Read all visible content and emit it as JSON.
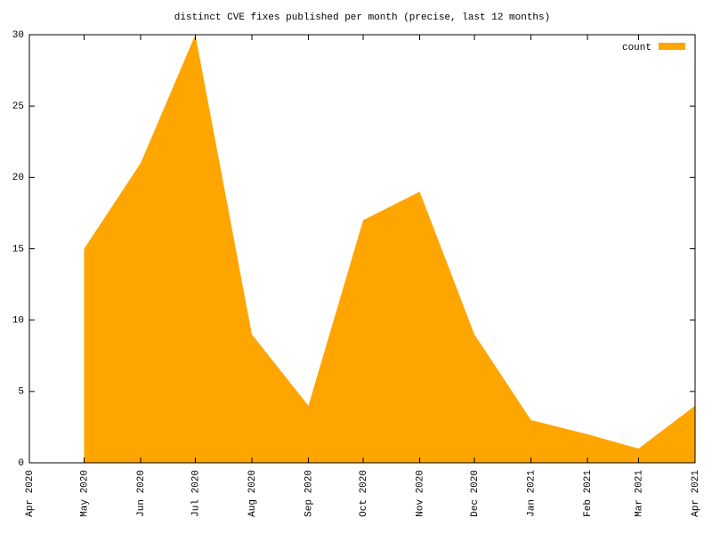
{
  "chart_data": {
    "type": "area",
    "title": "distinct CVE fixes published per month (precise, last 12 months)",
    "x": [
      "2020-05",
      "2020-06",
      "2020-07",
      "2020-08",
      "2020-09",
      "2020-10",
      "2020-11",
      "2020-12",
      "2021-01",
      "2021-02",
      "2021-03",
      "2021-04"
    ],
    "series": [
      {
        "name": "count",
        "color": "#ffa500",
        "values": [
          15,
          21,
          30,
          9,
          4,
          17,
          19,
          9,
          3,
          2,
          1,
          4
        ]
      }
    ],
    "xlim": [
      "2020-04",
      "2021-04"
    ],
    "xticks": [
      {
        "value": "2020-04",
        "label": "Apr 2020"
      },
      {
        "value": "2020-05",
        "label": "May 2020"
      },
      {
        "value": "2020-06",
        "label": "Jun 2020"
      },
      {
        "value": "2020-07",
        "label": "Jul 2020"
      },
      {
        "value": "2020-08",
        "label": "Aug 2020"
      },
      {
        "value": "2020-09",
        "label": "Sep 2020"
      },
      {
        "value": "2020-10",
        "label": "Oct 2020"
      },
      {
        "value": "2020-11",
        "label": "Nov 2020"
      },
      {
        "value": "2020-12",
        "label": "Dec 2020"
      },
      {
        "value": "2021-01",
        "label": "Jan 2021"
      },
      {
        "value": "2021-02",
        "label": "Feb 2021"
      },
      {
        "value": "2021-03",
        "label": "Mar 2021"
      },
      {
        "value": "2021-04",
        "label": "Apr 2021"
      }
    ],
    "ylim": [
      0,
      30
    ],
    "yticks": [
      0,
      5,
      10,
      15,
      20,
      25,
      30
    ],
    "legend": "top-right"
  }
}
